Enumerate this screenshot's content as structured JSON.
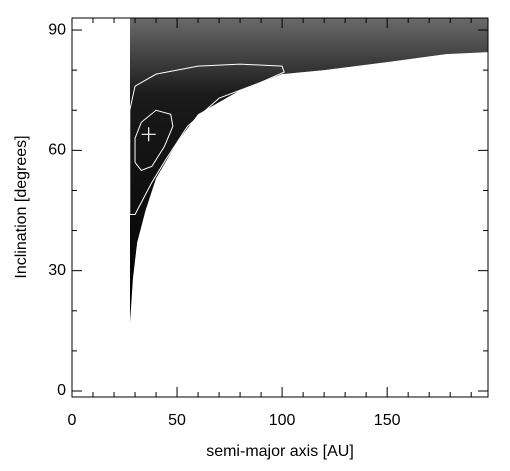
{
  "chart_data": {
    "type": "contour",
    "x_label": "semi-major axis [AU]",
    "y_label": "Inclination [degrees]",
    "xlim": [
      0,
      198
    ],
    "ylim": [
      -1.5,
      93
    ],
    "xticks": [
      0,
      50,
      100,
      150
    ],
    "yticks": [
      0,
      30,
      60,
      90
    ],
    "xminorticks": [
      10,
      20,
      30,
      40,
      60,
      70,
      80,
      90,
      110,
      120,
      130,
      140,
      160,
      170,
      180,
      190
    ],
    "yminorticks": [
      10,
      20,
      40,
      50,
      70,
      80
    ],
    "region": {
      "x": [
        27.6,
        27.6,
        29,
        31,
        35,
        40,
        50,
        60,
        80,
        100,
        120,
        150,
        178,
        198
      ],
      "y": [
        93,
        17,
        28,
        37,
        45,
        53,
        62,
        69,
        75,
        79,
        80,
        82,
        84,
        84.5
      ]
    },
    "contours": [
      {
        "x": [
          27.5,
          27.5,
          30,
          40,
          60,
          80,
          100,
          101,
          90,
          70,
          55,
          45,
          38,
          33,
          30,
          27.5
        ],
        "y": [
          44,
          70,
          76,
          79,
          81,
          81.5,
          81,
          79.5,
          77,
          73,
          66,
          58,
          52,
          47,
          44,
          44
        ]
      },
      {
        "x": [
          30,
          30,
          33,
          40,
          47,
          48,
          44,
          38,
          33,
          30
        ],
        "y": [
          57,
          63,
          67,
          70,
          69,
          66,
          61,
          56,
          55,
          57
        ]
      }
    ],
    "best_fit": {
      "x": 36.5,
      "y": 64
    }
  }
}
